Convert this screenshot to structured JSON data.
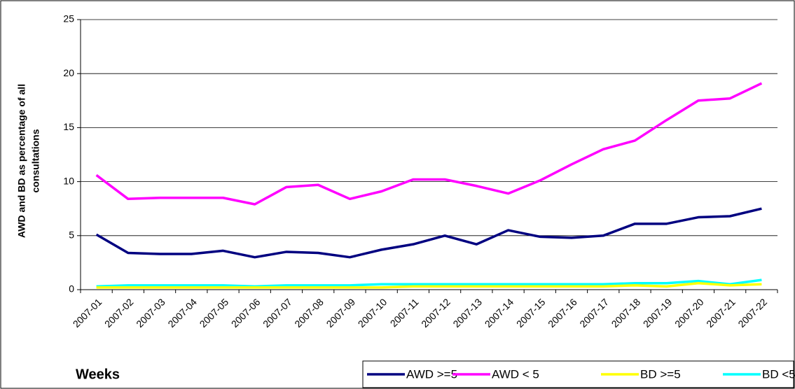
{
  "chart_data": {
    "type": "line",
    "y_label_lines": [
      "AWD and BD as percentage of all",
      "consultations"
    ],
    "x_label": "Weeks",
    "categories": [
      "2007-01",
      "2007-02",
      "2007-03",
      "2007-04",
      "2007-05",
      "2007-06",
      "2007-07",
      "2007-08",
      "2007-09",
      "2007-10",
      "2007-11",
      "2007-12",
      "2007-13",
      "2007-14",
      "2007-15",
      "2007-16",
      "2007-17",
      "2007-18",
      "2007-19",
      "2007-20",
      "2007-21",
      "2007-22"
    ],
    "series": [
      {
        "name": "AWD >=5",
        "color": "#000080",
        "values": [
          5.1,
          3.4,
          3.3,
          3.3,
          3.6,
          3.0,
          3.5,
          3.4,
          3.0,
          3.7,
          4.2,
          5.0,
          4.2,
          5.5,
          4.9,
          4.8,
          5.0,
          6.1,
          6.1,
          6.7,
          6.8,
          7.5
        ]
      },
      {
        "name": "AWD < 5",
        "color": "#ff00ff",
        "values": [
          10.6,
          8.4,
          8.5,
          8.5,
          8.5,
          7.9,
          9.5,
          9.7,
          8.4,
          9.1,
          10.2,
          10.2,
          9.6,
          8.9,
          10.1,
          11.6,
          13.0,
          13.8,
          15.7,
          17.5,
          17.7,
          19.1
        ]
      },
      {
        "name": "BD >=5",
        "color": "#ffff00",
        "values": [
          0.2,
          0.2,
          0.2,
          0.2,
          0.2,
          0.2,
          0.2,
          0.2,
          0.2,
          0.2,
          0.3,
          0.3,
          0.3,
          0.3,
          0.3,
          0.3,
          0.3,
          0.4,
          0.3,
          0.6,
          0.4,
          0.5
        ]
      },
      {
        "name": "BD <5",
        "color": "#00ffff",
        "values": [
          0.3,
          0.4,
          0.4,
          0.4,
          0.4,
          0.3,
          0.4,
          0.4,
          0.4,
          0.5,
          0.5,
          0.5,
          0.5,
          0.5,
          0.5,
          0.5,
          0.5,
          0.6,
          0.6,
          0.8,
          0.5,
          0.9
        ]
      }
    ],
    "ylim": [
      0,
      25
    ],
    "yticks": [
      0,
      5,
      10,
      15,
      20,
      25
    ],
    "grid": true,
    "legend": "bottom-right"
  }
}
